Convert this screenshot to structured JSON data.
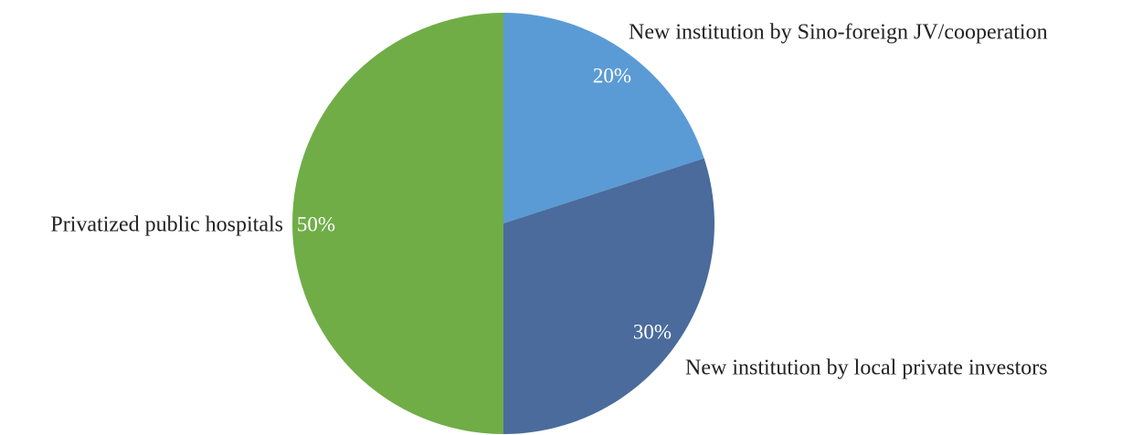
{
  "chart_data": {
    "type": "pie",
    "categories": [
      "New institution by Sino-foreign JV/cooperation",
      "New institution by local private investors",
      "Privatized public hospitals"
    ],
    "values": [
      20,
      30,
      50
    ],
    "value_labels": [
      "20%",
      "30%",
      "50%"
    ],
    "colors": [
      "#5b9bd5",
      "#4a6b9b",
      "#70ad47"
    ]
  }
}
